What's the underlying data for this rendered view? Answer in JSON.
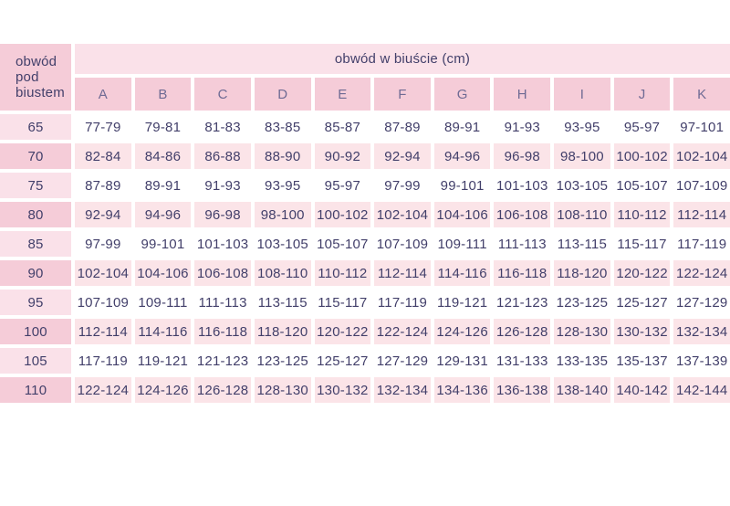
{
  "chart_data": {
    "type": "table",
    "corner_header": "obwód pod biustem",
    "group_header": "obwód w biuście (cm)",
    "columns": [
      "A",
      "B",
      "C",
      "D",
      "E",
      "F",
      "G",
      "H",
      "I",
      "J",
      "K"
    ],
    "rows": [
      {
        "label": "65",
        "values": [
          "77-79",
          "79-81",
          "81-83",
          "83-85",
          "85-87",
          "87-89",
          "89-91",
          "91-93",
          "93-95",
          "95-97",
          "97-101"
        ]
      },
      {
        "label": "70",
        "values": [
          "82-84",
          "84-86",
          "86-88",
          "88-90",
          "90-92",
          "92-94",
          "94-96",
          "96-98",
          "98-100",
          "100-102",
          "102-104"
        ]
      },
      {
        "label": "75",
        "values": [
          "87-89",
          "89-91",
          "91-93",
          "93-95",
          "95-97",
          "97-99",
          "99-101",
          "101-103",
          "103-105",
          "105-107",
          "107-109"
        ]
      },
      {
        "label": "80",
        "values": [
          "92-94",
          "94-96",
          "96-98",
          "98-100",
          "100-102",
          "102-104",
          "104-106",
          "106-108",
          "108-110",
          "110-112",
          "112-114"
        ]
      },
      {
        "label": "85",
        "values": [
          "97-99",
          "99-101",
          "101-103",
          "103-105",
          "105-107",
          "107-109",
          "109-111",
          "111-113",
          "113-115",
          "115-117",
          "117-119"
        ]
      },
      {
        "label": "90",
        "values": [
          "102-104",
          "104-106",
          "106-108",
          "108-110",
          "110-112",
          "112-114",
          "114-116",
          "116-118",
          "118-120",
          "120-122",
          "122-124"
        ]
      },
      {
        "label": "95",
        "values": [
          "107-109",
          "109-111",
          "111-113",
          "113-115",
          "115-117",
          "117-119",
          "119-121",
          "121-123",
          "123-125",
          "125-127",
          "127-129"
        ]
      },
      {
        "label": "100",
        "values": [
          "112-114",
          "114-116",
          "116-118",
          "118-120",
          "120-122",
          "122-124",
          "124-126",
          "126-128",
          "128-130",
          "130-132",
          "132-134"
        ]
      },
      {
        "label": "105",
        "values": [
          "117-119",
          "119-121",
          "121-123",
          "123-125",
          "125-127",
          "127-129",
          "129-131",
          "131-133",
          "133-135",
          "135-137",
          "137-139"
        ]
      },
      {
        "label": "110",
        "values": [
          "122-124",
          "124-126",
          "126-128",
          "128-130",
          "130-132",
          "132-134",
          "134-136",
          "136-138",
          "138-140",
          "140-142",
          "142-144"
        ]
      }
    ]
  },
  "colors": {
    "header_dark_pink": "#f5ccd8",
    "header_light_pink": "#fae1e9",
    "row_pink": "#fbe4e8",
    "text_dark": "#423f6a",
    "text_muted": "#6f6b94",
    "background": "#ffffff"
  }
}
